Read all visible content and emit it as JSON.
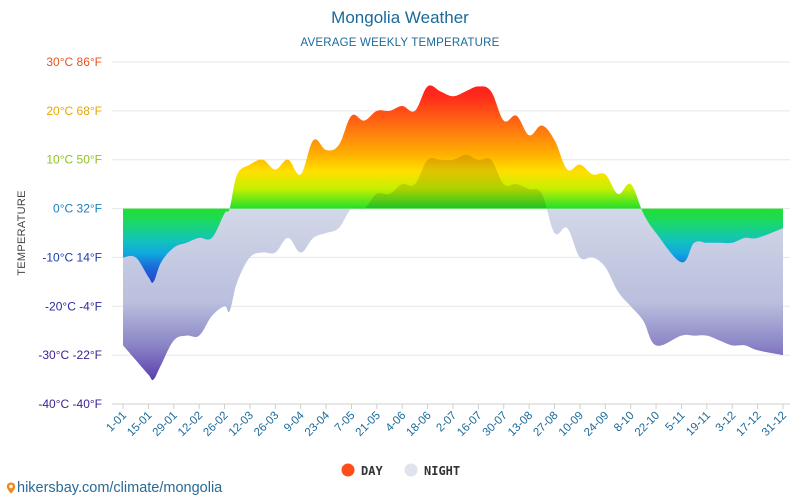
{
  "title": "Mongolia Weather",
  "subtitle": "AVERAGE WEEKLY TEMPERATURE",
  "watermark": "hikersbay.com/climate/mongolia",
  "colors": {
    "title": "#1a6a9a",
    "night_fill": "#c9cfe3",
    "grid": "#e6e6e6",
    "legend_day": "#ff4d1a",
    "legend_night": "#dfe3ee"
  },
  "chart_data": {
    "type": "area",
    "title": "Mongolia Weather",
    "subtitle": "AVERAGE WEEKLY TEMPERATURE",
    "ylabel": "TEMPERATURE",
    "ylim": [
      -40,
      30
    ],
    "y_ticks": [
      {
        "value": 30,
        "label": "30°C 86°F",
        "color": "#e8541f"
      },
      {
        "value": 20,
        "label": "20°C 68°F",
        "color": "#e6a800"
      },
      {
        "value": 10,
        "label": "10°C 50°F",
        "color": "#8ec21f"
      },
      {
        "value": 0,
        "label": "0°C 32°F",
        "color": "#1a7fbf"
      },
      {
        "value": -10,
        "label": "-10°C 14°F",
        "color": "#1a3fa8"
      },
      {
        "value": -20,
        "label": "-20°C -4°F",
        "color": "#2b2a9e"
      },
      {
        "value": -30,
        "label": "-30°C -22°F",
        "color": "#3a1f93"
      },
      {
        "value": -40,
        "label": "-40°C -40°F",
        "color": "#3a1f93"
      }
    ],
    "x_labels": [
      "1-01",
      "15-01",
      "29-01",
      "12-02",
      "26-02",
      "12-03",
      "26-03",
      "9-04",
      "23-04",
      "7-05",
      "21-05",
      "4-06",
      "18-06",
      "2-07",
      "16-07",
      "30-07",
      "13-08",
      "27-08",
      "10-09",
      "24-09",
      "8-10",
      "22-10",
      "5-11",
      "19-11",
      "3-12",
      "17-12",
      "31-12"
    ],
    "legend": [
      "DAY",
      "NIGHT"
    ],
    "series": [
      {
        "name": "DAY",
        "values": [
          -10,
          -10,
          -14,
          -15,
          -11,
          -8,
          -7,
          -6,
          -6,
          -1,
          0,
          7,
          9,
          10,
          8,
          10,
          7,
          14,
          12,
          13,
          19,
          18,
          20,
          20,
          21,
          20,
          25,
          24,
          23,
          24,
          25,
          24,
          18,
          19,
          15,
          17,
          14,
          8,
          9,
          7,
          7,
          3,
          5,
          -1,
          -5,
          -11,
          -7,
          -7,
          -7,
          -7,
          -6,
          -6,
          -4
        ],
        "x_index": [
          0,
          0.5,
          1,
          1.2,
          1.5,
          2,
          2.5,
          3,
          3.5,
          4,
          4.2,
          4.5,
          5,
          5.5,
          6,
          6.5,
          7,
          7.5,
          8,
          8.5,
          9,
          9.5,
          10,
          10.5,
          11,
          11.5,
          12,
          12.5,
          13,
          13.5,
          14,
          14.5,
          15,
          15.5,
          16,
          16.5,
          17,
          17.5,
          18,
          18.5,
          19,
          19.5,
          20,
          20.5,
          21,
          22,
          22.5,
          23,
          23.5,
          24,
          24.5,
          25,
          26
        ]
      },
      {
        "name": "NIGHT",
        "values": [
          -28,
          -31,
          -34,
          -35,
          -32,
          -27,
          -26,
          -26,
          -22,
          -20,
          -21,
          -15,
          -10,
          -9,
          -9,
          -6,
          -9,
          -6,
          -5,
          -4,
          0,
          0,
          3,
          3,
          5,
          5,
          10,
          10,
          10,
          11,
          10,
          10,
          5,
          5,
          4,
          3,
          -5,
          -4,
          -10,
          -10,
          -12,
          -17,
          -20,
          -23,
          -28,
          -26,
          -26,
          -26,
          -27,
          -28,
          -28,
          -29,
          -30
        ],
        "x_index": [
          0,
          0.5,
          1,
          1.2,
          1.5,
          2,
          2.5,
          3,
          3.5,
          4,
          4.2,
          4.5,
          5,
          5.5,
          6,
          6.5,
          7,
          7.5,
          8,
          8.5,
          9,
          9.5,
          10,
          10.5,
          11,
          11.5,
          12,
          12.5,
          13,
          13.5,
          14,
          14.5,
          15,
          15.5,
          16,
          16.5,
          17,
          17.5,
          18,
          18.5,
          19,
          19.5,
          20,
          20.5,
          21,
          22,
          22.5,
          23,
          23.5,
          24,
          24.5,
          25,
          26
        ]
      }
    ]
  }
}
